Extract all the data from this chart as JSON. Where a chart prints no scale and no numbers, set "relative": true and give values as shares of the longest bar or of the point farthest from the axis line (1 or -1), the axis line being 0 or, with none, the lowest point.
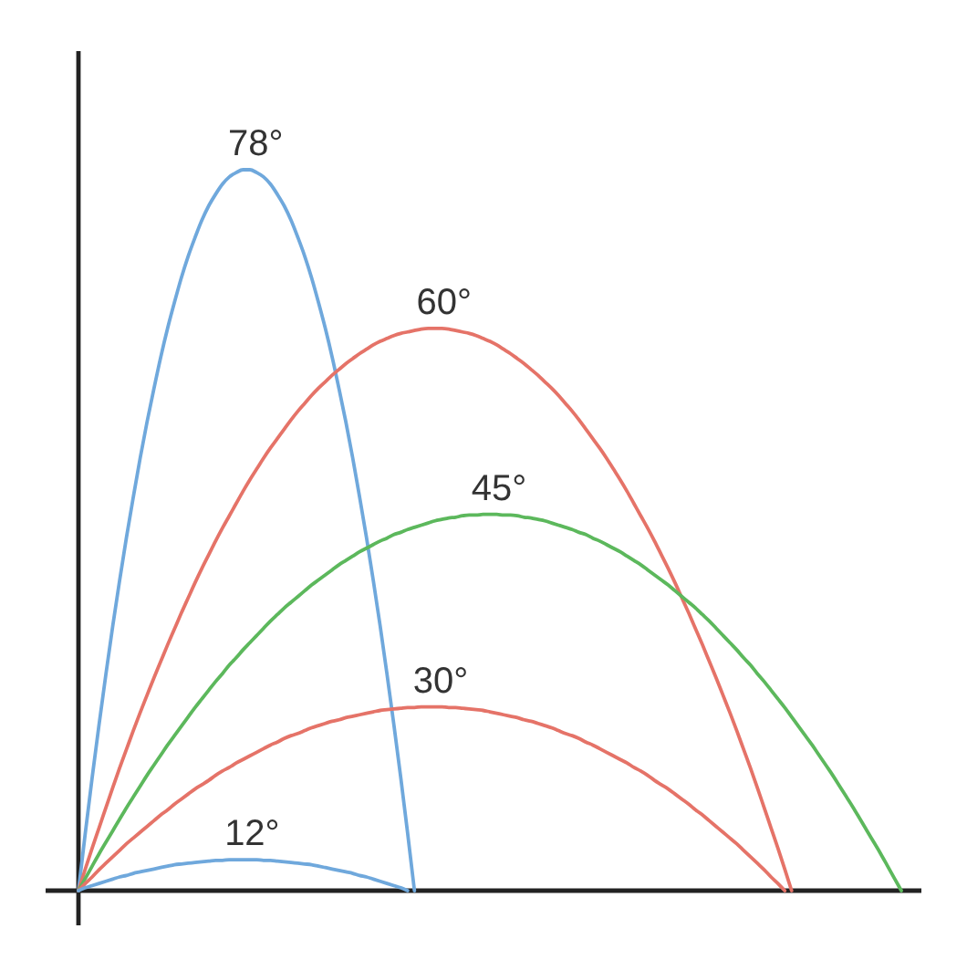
{
  "chart_data": {
    "type": "line",
    "relative": true,
    "categories": [
      null,
      null,
      null,
      null,
      null,
      null,
      null,
      null,
      null,
      null,
      null,
      null,
      null,
      null,
      null,
      null,
      null,
      null,
      null,
      null,
      null,
      null,
      null,
      null,
      null,
      null,
      null,
      null,
      null,
      null,
      null,
      null,
      null,
      null,
      null,
      null,
      null,
      null,
      null,
      null,
      null,
      null,
      null,
      null,
      null,
      null,
      null,
      null,
      null,
      null,
      null,
      null,
      null,
      null,
      null,
      null,
      null,
      null,
      null,
      null,
      null,
      null,
      null,
      null,
      null,
      null,
      null,
      null,
      null,
      null,
      null,
      null,
      null,
      null,
      null,
      null,
      null,
      null,
      null,
      null,
      null,
      null,
      null,
      null,
      null,
      null,
      null,
      null,
      null,
      null,
      null,
      null,
      null,
      null,
      null,
      null,
      null,
      null,
      null,
      null,
      null,
      null,
      null,
      null,
      null,
      null,
      null,
      null,
      null,
      null,
      null,
      null,
      null,
      null,
      null,
      null,
      null,
      null,
      null,
      null,
      null
    ],
    "series": [
      {
        "name": "78°",
        "color": "#6fa8dc",
        "values": [
          0,
          0.08,
          0.157,
          0.23,
          0.3,
          0.367,
          0.43,
          0.49,
          0.546,
          0.6,
          0.65,
          0.696,
          0.74,
          0.78,
          0.816,
          0.85,
          0.88,
          0.906,
          0.93,
          0.95,
          0.966,
          0.98,
          0.99,
          0.996,
          1,
          1,
          0.996,
          0.99,
          0.98,
          0.966,
          0.95,
          0.93,
          0.906,
          0.88,
          0.85,
          0.816,
          0.78,
          0.74,
          0.696,
          0.65,
          0.6,
          0.546,
          0.49,
          0.43,
          0.367,
          0.3,
          0.23,
          0.157,
          0.08,
          0,
          null,
          null,
          null,
          null,
          null,
          null,
          null,
          null,
          null,
          null,
          null,
          null,
          null,
          null,
          null,
          null,
          null,
          null,
          null,
          null,
          null,
          null,
          null,
          null,
          null,
          null,
          null,
          null,
          null,
          null,
          null,
          null,
          null,
          null,
          null,
          null,
          null,
          null,
          null,
          null,
          null,
          null,
          null,
          null,
          null,
          null,
          null,
          null,
          null,
          null,
          null,
          null,
          null,
          null,
          null,
          null,
          null,
          null,
          null,
          null,
          null,
          null,
          null,
          null,
          null,
          null,
          null,
          null,
          null,
          null,
          null
        ]
      },
      {
        "name": "60°",
        "color": "#e57368",
        "values": [
          0,
          0.03,
          0.059,
          0.087,
          0.115,
          0.143,
          0.17,
          0.196,
          0.222,
          0.247,
          0.271,
          0.295,
          0.318,
          0.341,
          0.363,
          0.385,
          0.406,
          0.427,
          0.447,
          0.466,
          0.485,
          0.503,
          0.52,
          0.537,
          0.554,
          0.57,
          0.585,
          0.6,
          0.614,
          0.627,
          0.64,
          0.653,
          0.665,
          0.676,
          0.687,
          0.697,
          0.706,
          0.715,
          0.723,
          0.731,
          0.738,
          0.745,
          0.751,
          0.757,
          0.762,
          0.766,
          0.77,
          0.773,
          0.775,
          0.777,
          0.779,
          0.78,
          0.78,
          0.78,
          0.779,
          0.777,
          0.775,
          0.773,
          0.77,
          0.766,
          0.762,
          0.757,
          0.751,
          0.745,
          0.738,
          0.731,
          0.723,
          0.715,
          0.706,
          0.697,
          0.687,
          0.676,
          0.665,
          0.653,
          0.64,
          0.627,
          0.614,
          0.6,
          0.585,
          0.57,
          0.554,
          0.537,
          0.52,
          0.503,
          0.485,
          0.466,
          0.447,
          0.427,
          0.406,
          0.385,
          0.363,
          0.341,
          0.318,
          0.295,
          0.271,
          0.247,
          0.222,
          0.196,
          0.17,
          0.143,
          0.115,
          0.087,
          0.059,
          0.03,
          0,
          null,
          null,
          null,
          null,
          null,
          null,
          null,
          null,
          null,
          null,
          null,
          null,
          null,
          null,
          null,
          null
        ]
      },
      {
        "name": "45°",
        "color": "#5cb85c",
        "values": [
          0,
          0.017,
          0.034,
          0.051,
          0.067,
          0.083,
          0.099,
          0.115,
          0.13,
          0.145,
          0.16,
          0.174,
          0.188,
          0.202,
          0.215,
          0.228,
          0.241,
          0.254,
          0.266,
          0.278,
          0.29,
          0.301,
          0.313,
          0.323,
          0.334,
          0.344,
          0.354,
          0.364,
          0.374,
          0.383,
          0.392,
          0.4,
          0.408,
          0.416,
          0.424,
          0.431,
          0.438,
          0.445,
          0.452,
          0.458,
          0.464,
          0.47,
          0.475,
          0.48,
          0.485,
          0.489,
          0.494,
          0.497,
          0.501,
          0.504,
          0.507,
          0.51,
          0.513,
          0.515,
          0.517,
          0.518,
          0.52,
          0.521,
          0.521,
          0.522,
          0.522,
          0.522,
          0.521,
          0.521,
          0.52,
          0.518,
          0.517,
          0.515,
          0.513,
          0.51,
          0.507,
          0.504,
          0.501,
          0.497,
          0.494,
          0.489,
          0.485,
          0.48,
          0.475,
          0.47,
          0.464,
          0.458,
          0.452,
          0.445,
          0.438,
          0.431,
          0.424,
          0.416,
          0.408,
          0.4,
          0.392,
          0.383,
          0.374,
          0.364,
          0.354,
          0.344,
          0.334,
          0.323,
          0.313,
          0.301,
          0.29,
          0.278,
          0.266,
          0.254,
          0.241,
          0.228,
          0.215,
          0.202,
          0.188,
          0.174,
          0.16,
          0.145,
          0.13,
          0.115,
          0.099,
          0.083,
          0.067,
          0.051,
          0.034,
          0.017,
          0
        ]
      },
      {
        "name": "30°",
        "color": "#e57368",
        "values": [
          0,
          0.01,
          0.019,
          0.029,
          0.038,
          0.047,
          0.056,
          0.065,
          0.073,
          0.081,
          0.089,
          0.097,
          0.105,
          0.112,
          0.12,
          0.127,
          0.134,
          0.141,
          0.147,
          0.153,
          0.16,
          0.166,
          0.171,
          0.177,
          0.182,
          0.187,
          0.192,
          0.197,
          0.202,
          0.206,
          0.211,
          0.215,
          0.218,
          0.222,
          0.226,
          0.229,
          0.232,
          0.235,
          0.237,
          0.24,
          0.242,
          0.244,
          0.246,
          0.248,
          0.25,
          0.251,
          0.252,
          0.253,
          0.254,
          0.254,
          0.255,
          0.255,
          0.255,
          0.255,
          0.254,
          0.254,
          0.253,
          0.252,
          0.251,
          0.25,
          0.248,
          0.246,
          0.244,
          0.242,
          0.24,
          0.237,
          0.235,
          0.232,
          0.229,
          0.226,
          0.222,
          0.218,
          0.215,
          0.211,
          0.206,
          0.202,
          0.197,
          0.192,
          0.187,
          0.182,
          0.177,
          0.171,
          0.166,
          0.16,
          0.153,
          0.147,
          0.141,
          0.134,
          0.127,
          0.12,
          0.112,
          0.105,
          0.097,
          0.089,
          0.081,
          0.073,
          0.065,
          0.056,
          0.047,
          0.038,
          0.029,
          0.019,
          0.01,
          0,
          null,
          null,
          null,
          null,
          null,
          null,
          null,
          null,
          null,
          null,
          null,
          null,
          null,
          null,
          null,
          null,
          null
        ]
      },
      {
        "name": "12°",
        "color": "#6fa8dc",
        "values": [
          0,
          0.004,
          0.007,
          0.01,
          0.013,
          0.016,
          0.019,
          0.021,
          0.024,
          0.026,
          0.028,
          0.03,
          0.032,
          0.034,
          0.036,
          0.037,
          0.038,
          0.039,
          0.04,
          0.041,
          0.042,
          0.042,
          0.043,
          0.043,
          0.043,
          0.043,
          0.043,
          0.042,
          0.042,
          0.041,
          0.04,
          0.039,
          0.038,
          0.037,
          0.036,
          0.034,
          0.032,
          0.03,
          0.028,
          0.026,
          0.024,
          0.021,
          0.019,
          0.016,
          0.013,
          0.01,
          0.007,
          0.004,
          0,
          null,
          null,
          null,
          null,
          null,
          null,
          null,
          null,
          null,
          null,
          null,
          null,
          null,
          null,
          null,
          null,
          null,
          null,
          null,
          null,
          null,
          null,
          null,
          null,
          null,
          null,
          null,
          null,
          null,
          null,
          null,
          null,
          null,
          null,
          null,
          null,
          null,
          null,
          null,
          null,
          null,
          null,
          null,
          null,
          null,
          null,
          null,
          null,
          null,
          null,
          null,
          null,
          null,
          null,
          null,
          null,
          null,
          null,
          null,
          null,
          null,
          null,
          null,
          null,
          null,
          null,
          null,
          null,
          null,
          null,
          null,
          null
        ]
      }
    ]
  }
}
